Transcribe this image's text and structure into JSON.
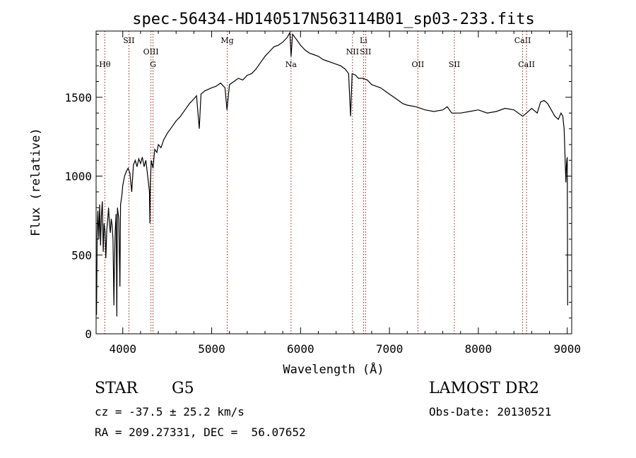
{
  "chart_data": {
    "type": "line",
    "title": "spec-56434-HD140517N563114B01_sp03-233.fits",
    "xlabel": "Wavelength (Å)",
    "ylabel": "Flux (relative)",
    "xlim": [
      3700,
      9050
    ],
    "ylim": [
      0,
      1920
    ],
    "xticks": [
      4000,
      5000,
      6000,
      7000,
      8000,
      9000
    ],
    "yticks": [
      0,
      500,
      1000,
      1500
    ],
    "grid": false,
    "line_color": "#000000",
    "marker_color": "#8b1a1a",
    "spectral_lines": [
      {
        "label": "Hθ",
        "wavelength": 3798,
        "row": "lower"
      },
      {
        "label": "SII",
        "wavelength": 4069,
        "row": "upper"
      },
      {
        "label": "OIII",
        "wavelength": 4317,
        "row": "mid"
      },
      {
        "label": "G",
        "wavelength": 4340,
        "row": "lower"
      },
      {
        "label": "Mg",
        "wavelength": 5175,
        "row": "upper"
      },
      {
        "label": "Na",
        "wavelength": 5893,
        "row": "lower"
      },
      {
        "label": "Li",
        "wavelength": 6708,
        "row": "upper"
      },
      {
        "label": "NII",
        "wavelength": 6584,
        "row": "mid"
      },
      {
        "label": "SII",
        "wavelength": 6731,
        "row": "mid"
      },
      {
        "label": "OII",
        "wavelength": 7320,
        "row": "lower"
      },
      {
        "label": "SII",
        "wavelength": 7730,
        "row": "lower"
      },
      {
        "label": "CaII",
        "wavelength": 8498,
        "row": "upper"
      },
      {
        "label": "CaII",
        "wavelength": 8542,
        "row": "lower"
      }
    ],
    "spectrum": [
      [
        3705,
        120
      ],
      [
        3712,
        650
      ],
      [
        3720,
        780
      ],
      [
        3730,
        600
      ],
      [
        3740,
        820
      ],
      [
        3750,
        560
      ],
      [
        3760,
        750
      ],
      [
        3770,
        840
      ],
      [
        3780,
        520
      ],
      [
        3790,
        700
      ],
      [
        3800,
        650
      ],
      [
        3810,
        480
      ],
      [
        3820,
        660
      ],
      [
        3830,
        720
      ],
      [
        3840,
        800
      ],
      [
        3850,
        700
      ],
      [
        3860,
        640
      ],
      [
        3870,
        730
      ],
      [
        3880,
        690
      ],
      [
        3890,
        600
      ],
      [
        3900,
        180
      ],
      [
        3905,
        400
      ],
      [
        3915,
        650
      ],
      [
        3925,
        760
      ],
      [
        3933,
        110
      ],
      [
        3940,
        800
      ],
      [
        3955,
        730
      ],
      [
        3968,
        300
      ],
      [
        3975,
        820
      ],
      [
        3990,
        880
      ],
      [
        4000,
        940
      ],
      [
        4020,
        1000
      ],
      [
        4040,
        1030
      ],
      [
        4060,
        1050
      ],
      [
        4080,
        1020
      ],
      [
        4101,
        900
      ],
      [
        4120,
        1070
      ],
      [
        4140,
        1100
      ],
      [
        4160,
        1060
      ],
      [
        4180,
        1110
      ],
      [
        4200,
        1080
      ],
      [
        4220,
        1120
      ],
      [
        4240,
        1060
      ],
      [
        4260,
        1100
      ],
      [
        4280,
        1000
      ],
      [
        4300,
        900
      ],
      [
        4305,
        700
      ],
      [
        4310,
        950
      ],
      [
        4320,
        1100
      ],
      [
        4340,
        1050
      ],
      [
        4360,
        1170
      ],
      [
        4383,
        1150
      ],
      [
        4400,
        1200
      ],
      [
        4430,
        1180
      ],
      [
        4460,
        1230
      ],
      [
        4500,
        1270
      ],
      [
        4550,
        1310
      ],
      [
        4600,
        1350
      ],
      [
        4650,
        1380
      ],
      [
        4700,
        1420
      ],
      [
        4750,
        1460
      ],
      [
        4800,
        1490
      ],
      [
        4830,
        1510
      ],
      [
        4861,
        1300
      ],
      [
        4880,
        1520
      ],
      [
        4920,
        1540
      ],
      [
        4960,
        1550
      ],
      [
        5000,
        1560
      ],
      [
        5050,
        1570
      ],
      [
        5100,
        1590
      ],
      [
        5150,
        1560
      ],
      [
        5172,
        1420
      ],
      [
        5200,
        1580
      ],
      [
        5250,
        1600
      ],
      [
        5300,
        1620
      ],
      [
        5350,
        1610
      ],
      [
        5400,
        1640
      ],
      [
        5450,
        1650
      ],
      [
        5500,
        1680
      ],
      [
        5550,
        1720
      ],
      [
        5600,
        1760
      ],
      [
        5650,
        1790
      ],
      [
        5700,
        1820
      ],
      [
        5750,
        1830
      ],
      [
        5800,
        1850
      ],
      [
        5850,
        1880
      ],
      [
        5880,
        1910
      ],
      [
        5893,
        1760
      ],
      [
        5910,
        1900
      ],
      [
        5950,
        1870
      ],
      [
        6000,
        1830
      ],
      [
        6050,
        1800
      ],
      [
        6100,
        1780
      ],
      [
        6150,
        1770
      ],
      [
        6200,
        1760
      ],
      [
        6250,
        1740
      ],
      [
        6300,
        1730
      ],
      [
        6350,
        1720
      ],
      [
        6400,
        1710
      ],
      [
        6450,
        1700
      ],
      [
        6500,
        1680
      ],
      [
        6540,
        1650
      ],
      [
        6563,
        1380
      ],
      [
        6580,
        1650
      ],
      [
        6620,
        1640
      ],
      [
        6650,
        1620
      ],
      [
        6700,
        1620
      ],
      [
        6750,
        1610
      ],
      [
        6800,
        1580
      ],
      [
        6850,
        1570
      ],
      [
        6900,
        1560
      ],
      [
        6950,
        1540
      ],
      [
        7000,
        1520
      ],
      [
        7050,
        1500
      ],
      [
        7100,
        1480
      ],
      [
        7150,
        1460
      ],
      [
        7200,
        1450
      ],
      [
        7300,
        1440
      ],
      [
        7400,
        1420
      ],
      [
        7500,
        1410
      ],
      [
        7600,
        1420
      ],
      [
        7650,
        1440
      ],
      [
        7700,
        1400
      ],
      [
        7800,
        1400
      ],
      [
        7900,
        1410
      ],
      [
        8000,
        1420
      ],
      [
        8100,
        1400
      ],
      [
        8200,
        1410
      ],
      [
        8300,
        1430
      ],
      [
        8400,
        1420
      ],
      [
        8498,
        1380
      ],
      [
        8542,
        1400
      ],
      [
        8600,
        1430
      ],
      [
        8662,
        1400
      ],
      [
        8700,
        1470
      ],
      [
        8740,
        1480
      ],
      [
        8780,
        1460
      ],
      [
        8820,
        1420
      ],
      [
        8860,
        1380
      ],
      [
        8900,
        1360
      ],
      [
        8930,
        1400
      ],
      [
        8950,
        1380
      ],
      [
        8965,
        1300
      ],
      [
        8975,
        1120
      ],
      [
        8985,
        960
      ],
      [
        8990,
        1060
      ],
      [
        8995,
        1100
      ],
      [
        9000,
        1120
      ],
      [
        9005,
        180
      ]
    ]
  },
  "info": {
    "object_class": "STAR",
    "subclass": "G5",
    "survey": "LAMOST DR2",
    "redshift": "cz = -37.5 ± 25.2 km/s",
    "obs_date": "Obs-Date: 20130521",
    "coords": "RA = 209.27331, DEC =  56.07652"
  }
}
